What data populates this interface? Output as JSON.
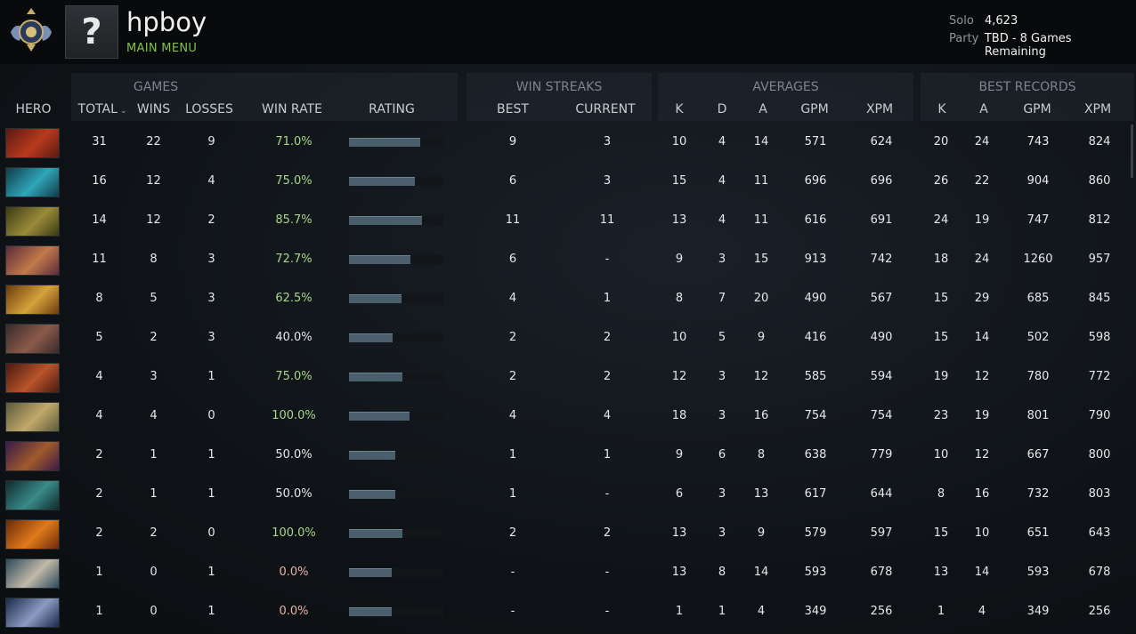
{
  "profile": {
    "username": "hpboy",
    "menu_label": "MAIN MENU",
    "avatar_placeholder": "?"
  },
  "mmr": {
    "solo_label": "Solo",
    "solo_value": "4,623",
    "party_label": "Party",
    "party_value": "TBD - 8 Games Remaining"
  },
  "groups": {
    "games": "GAMES",
    "win_streaks": "WIN STREAKS",
    "averages": "AVERAGES",
    "best_records": "BEST RECORDS"
  },
  "columns": {
    "hero": "HERO",
    "total": "TOTAL",
    "wins": "WINS",
    "losses": "LOSSES",
    "win_rate": "WIN RATE",
    "rating": "RATING",
    "best": "BEST",
    "current": "CURRENT",
    "avg_k": "K",
    "avg_d": "D",
    "avg_a": "A",
    "avg_gpm": "GPM",
    "avg_xpm": "XPM",
    "best_k": "K",
    "best_a": "A",
    "best_gpm": "GPM",
    "best_xpm": "XPM"
  },
  "colors": {
    "accent_green": "#7fc24c",
    "winrate_green": "#a6d68a",
    "winrate_zero": "#e8b3a8"
  },
  "rows": [
    {
      "total": "31",
      "wins": "22",
      "losses": "9",
      "win_rate": "71.0%",
      "rating": 0.75,
      "best": "9",
      "current": "3",
      "k": "10",
      "d": "4",
      "a": "14",
      "gpm": "571",
      "xpm": "624",
      "bk": "20",
      "ba": "24",
      "bgpm": "743",
      "bxpm": "824",
      "portrait": [
        "#5a1a12",
        "#b83a1e"
      ]
    },
    {
      "total": "16",
      "wins": "12",
      "losses": "4",
      "win_rate": "75.0%",
      "rating": 0.7,
      "best": "6",
      "current": "3",
      "k": "15",
      "d": "4",
      "a": "11",
      "gpm": "696",
      "xpm": "696",
      "bk": "26",
      "ba": "22",
      "bgpm": "904",
      "bxpm": "860",
      "portrait": [
        "#0f3b4a",
        "#2fa6b8"
      ]
    },
    {
      "total": "14",
      "wins": "12",
      "losses": "2",
      "win_rate": "85.7%",
      "rating": 0.77,
      "best": "11",
      "current": "11",
      "k": "13",
      "d": "4",
      "a": "11",
      "gpm": "616",
      "xpm": "691",
      "bk": "24",
      "ba": "19",
      "bgpm": "747",
      "bxpm": "812",
      "portrait": [
        "#3a3a12",
        "#9a8a3a"
      ]
    },
    {
      "total": "11",
      "wins": "8",
      "losses": "3",
      "win_rate": "72.7%",
      "rating": 0.65,
      "best": "6",
      "current": "-",
      "k": "9",
      "d": "3",
      "a": "15",
      "gpm": "913",
      "xpm": "742",
      "bk": "18",
      "ba": "24",
      "bgpm": "1260",
      "bxpm": "957",
      "portrait": [
        "#5a2a3a",
        "#c27a4a"
      ]
    },
    {
      "total": "8",
      "wins": "5",
      "losses": "3",
      "win_rate": "62.5%",
      "rating": 0.56,
      "best": "4",
      "current": "1",
      "k": "8",
      "d": "7",
      "a": "20",
      "gpm": "490",
      "xpm": "567",
      "bk": "15",
      "ba": "29",
      "bgpm": "685",
      "bxpm": "845",
      "portrait": [
        "#6a3a0e",
        "#d6a23a"
      ]
    },
    {
      "total": "5",
      "wins": "2",
      "losses": "3",
      "win_rate": "40.0%",
      "rating": 0.46,
      "best": "2",
      "current": "2",
      "k": "10",
      "d": "5",
      "a": "9",
      "gpm": "416",
      "xpm": "490",
      "bk": "15",
      "ba": "14",
      "bgpm": "502",
      "bxpm": "598",
      "portrait": [
        "#3a2a2a",
        "#8a5a4a"
      ]
    },
    {
      "total": "4",
      "wins": "3",
      "losses": "1",
      "win_rate": "75.0%",
      "rating": 0.57,
      "best": "2",
      "current": "2",
      "k": "12",
      "d": "3",
      "a": "12",
      "gpm": "585",
      "xpm": "594",
      "bk": "19",
      "ba": "12",
      "bgpm": "780",
      "bxpm": "772",
      "portrait": [
        "#4a1a10",
        "#b8542a"
      ]
    },
    {
      "total": "4",
      "wins": "4",
      "losses": "0",
      "win_rate": "100.0%",
      "rating": 0.64,
      "best": "4",
      "current": "4",
      "k": "18",
      "d": "3",
      "a": "16",
      "gpm": "754",
      "xpm": "754",
      "bk": "23",
      "ba": "19",
      "bgpm": "801",
      "bxpm": "790",
      "portrait": [
        "#5a5a3a",
        "#c2a86a"
      ]
    },
    {
      "total": "2",
      "wins": "1",
      "losses": "1",
      "win_rate": "50.0%",
      "rating": 0.49,
      "best": "1",
      "current": "1",
      "k": "9",
      "d": "6",
      "a": "8",
      "gpm": "638",
      "xpm": "779",
      "bk": "10",
      "ba": "12",
      "bgpm": "667",
      "bxpm": "800",
      "portrait": [
        "#3a1a4a",
        "#a05a2a"
      ]
    },
    {
      "total": "2",
      "wins": "1",
      "losses": "1",
      "win_rate": "50.0%",
      "rating": 0.49,
      "best": "1",
      "current": "-",
      "k": "6",
      "d": "3",
      "a": "13",
      "gpm": "617",
      "xpm": "644",
      "bk": "8",
      "ba": "16",
      "bgpm": "732",
      "bxpm": "803",
      "portrait": [
        "#0f2a2a",
        "#3a8a8a"
      ]
    },
    {
      "total": "2",
      "wins": "2",
      "losses": "0",
      "win_rate": "100.0%",
      "rating": 0.57,
      "best": "2",
      "current": "2",
      "k": "13",
      "d": "3",
      "a": "9",
      "gpm": "579",
      "xpm": "597",
      "bk": "15",
      "ba": "10",
      "bgpm": "651",
      "bxpm": "643",
      "portrait": [
        "#6a2a0a",
        "#e07a1a"
      ]
    },
    {
      "total": "1",
      "wins": "0",
      "losses": "1",
      "win_rate": "0.0%",
      "rating": 0.45,
      "best": "-",
      "current": "-",
      "k": "13",
      "d": "8",
      "a": "14",
      "gpm": "593",
      "xpm": "678",
      "bk": "13",
      "ba": "14",
      "bgpm": "593",
      "bxpm": "678",
      "portrait": [
        "#2a4a5a",
        "#c2b8a8"
      ]
    },
    {
      "total": "1",
      "wins": "0",
      "losses": "1",
      "win_rate": "0.0%",
      "rating": 0.45,
      "best": "-",
      "current": "-",
      "k": "1",
      "d": "1",
      "a": "4",
      "gpm": "349",
      "xpm": "256",
      "bk": "1",
      "ba": "4",
      "bgpm": "349",
      "bxpm": "256",
      "portrait": [
        "#1a2a4a",
        "#8a9ac2"
      ]
    }
  ]
}
